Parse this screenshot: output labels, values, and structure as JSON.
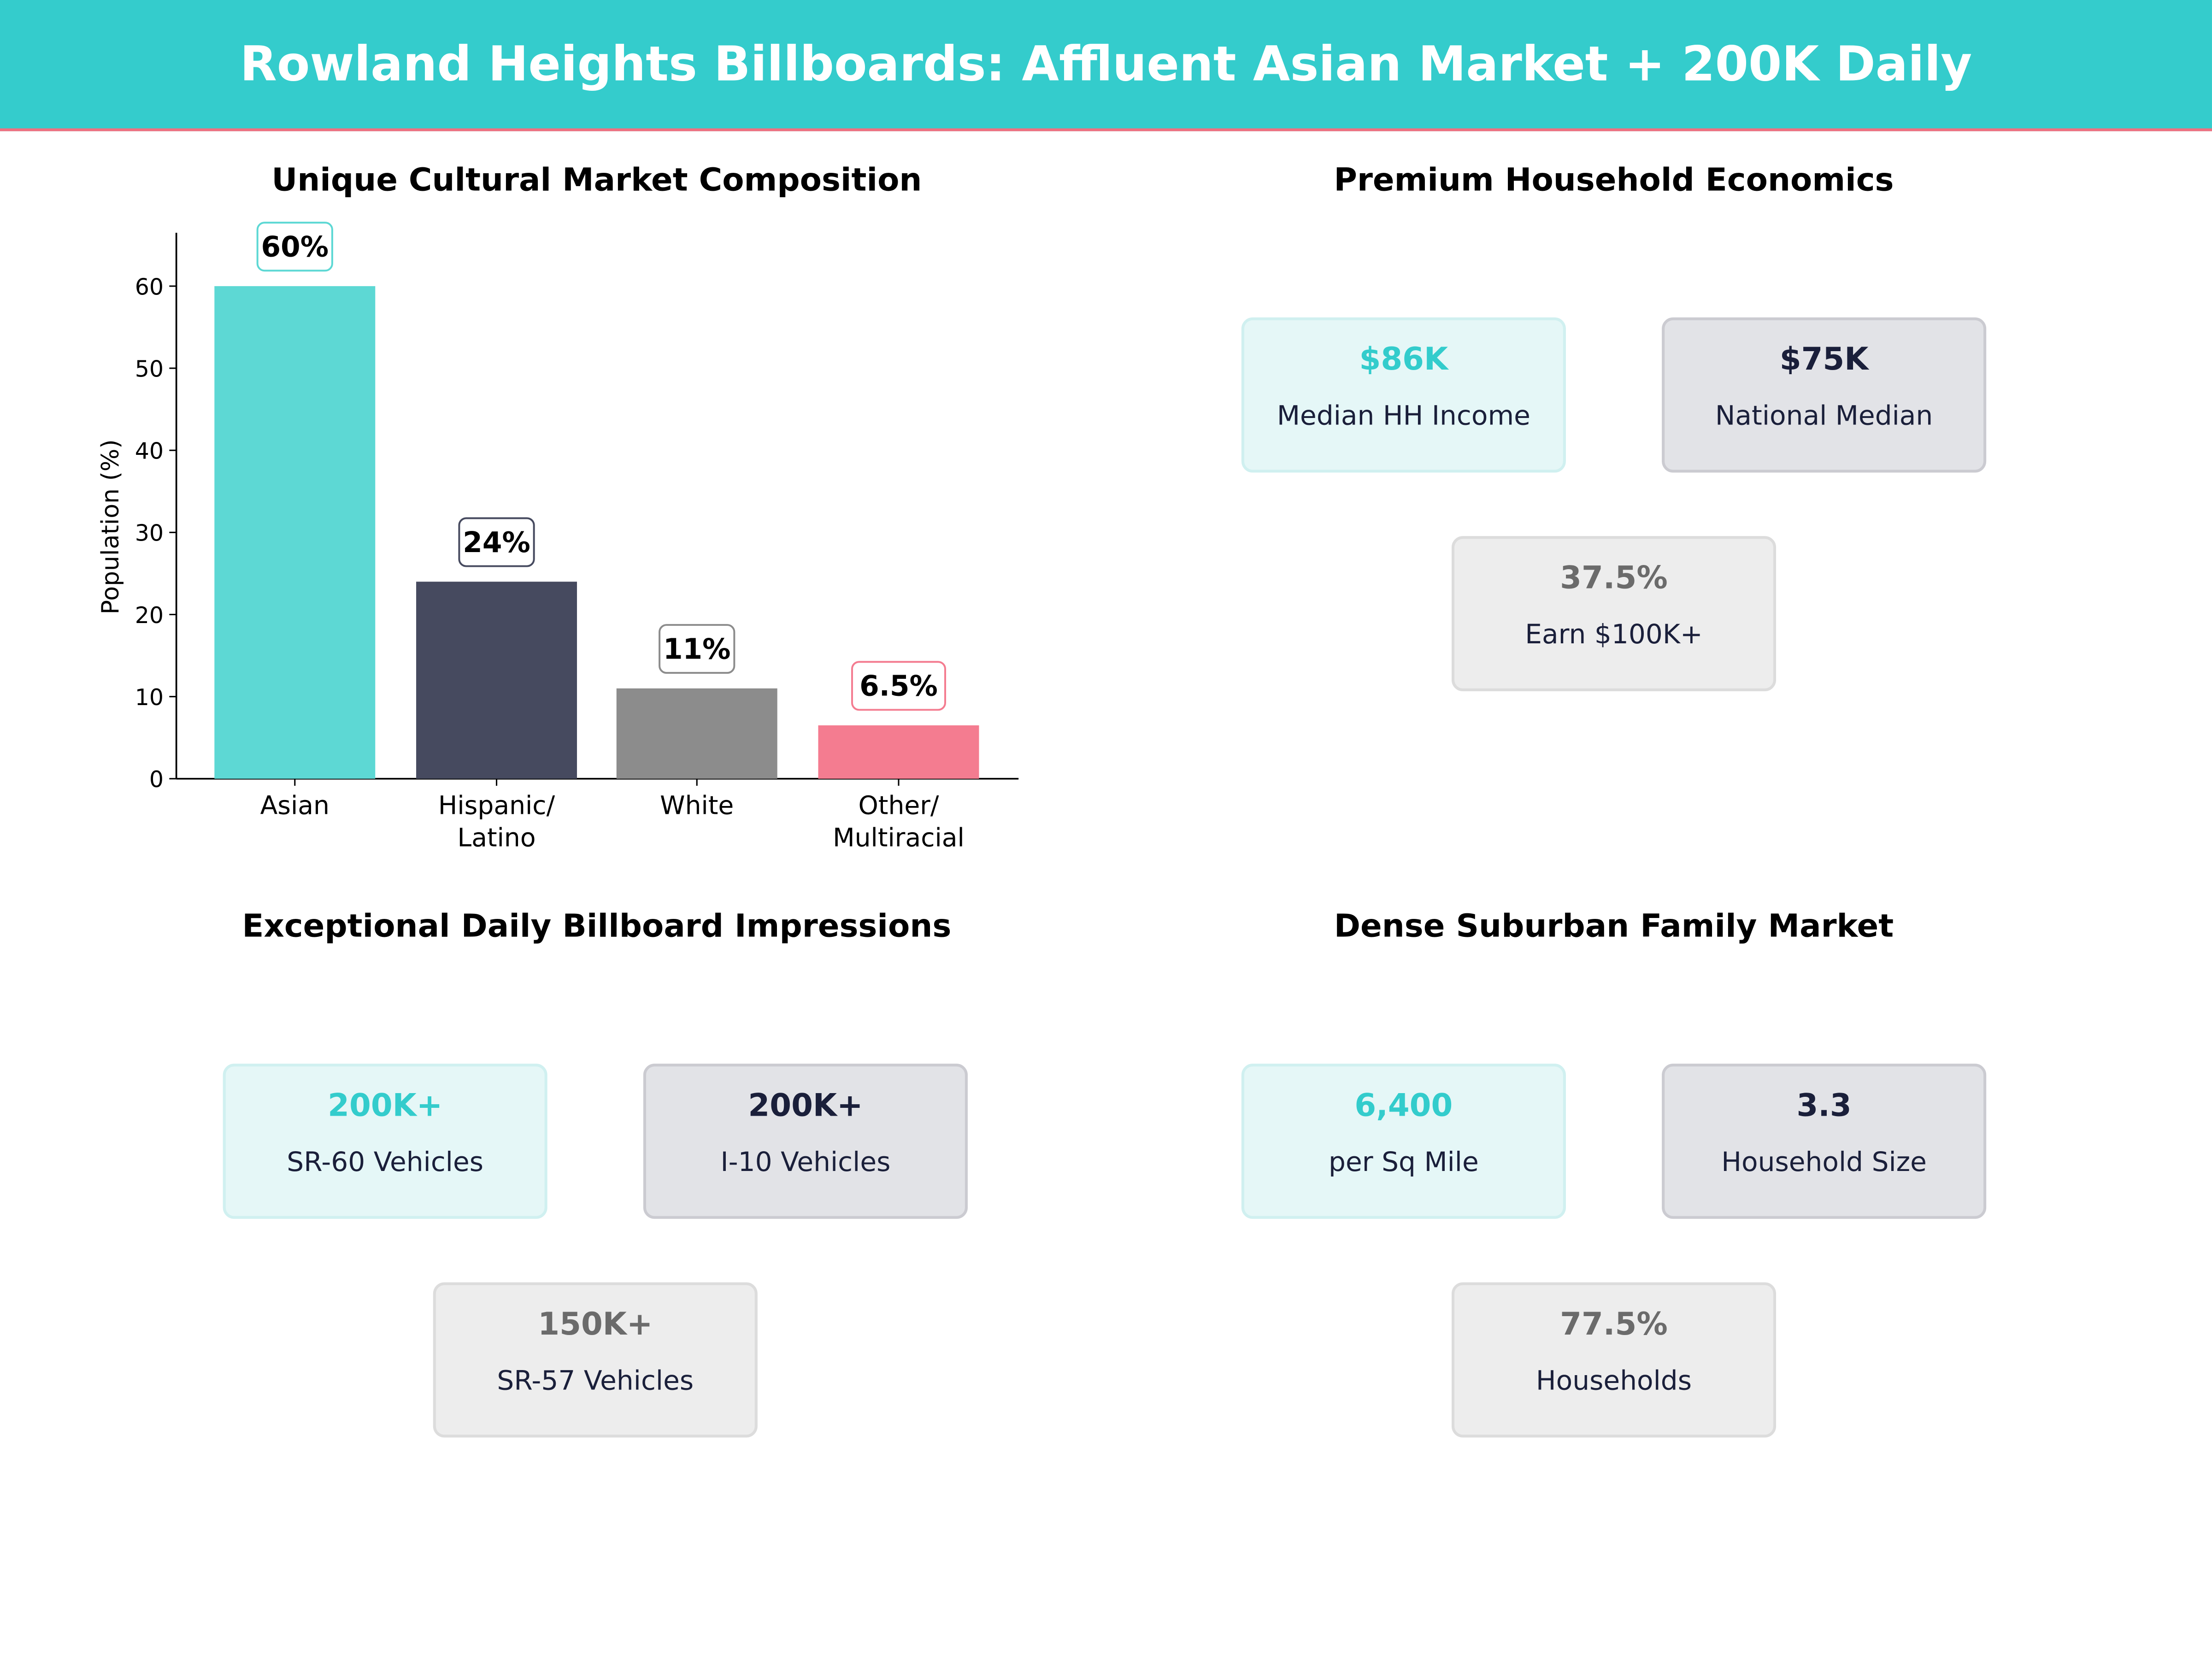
{
  "header": {
    "title": "Rowland Heights Billboards: Affluent Asian Market + 200K Daily",
    "background": "#34CCCC",
    "accent_line": "#F07080"
  },
  "chart_data": {
    "type": "bar",
    "title": "Unique Cultural Market Composition",
    "categories": [
      "Asian",
      "Hispanic/\nLatino",
      "White",
      "Other/\nMultiracial"
    ],
    "values": [
      60,
      24,
      11,
      6.5
    ],
    "data_labels": [
      "60%",
      "24%",
      "11%",
      "6.5%"
    ],
    "colors": [
      "#5DD8D4",
      "#464A5F",
      "#8C8C8C",
      "#F47C90"
    ],
    "xlabel": "",
    "ylabel": "Population (%)",
    "ylim": [
      0,
      66.5
    ],
    "yticks": [
      0,
      10,
      20,
      30,
      40,
      50,
      60
    ],
    "grid": false
  },
  "panels": [
    {
      "title": "Premium Household Economics",
      "cards": [
        {
          "value": "$86K",
          "label": "Median HH Income",
          "style": "teal"
        },
        {
          "value": "$75K",
          "label": "National Median",
          "style": "dark"
        },
        {
          "value": "37.5%",
          "label": "Earn $100K+",
          "style": "gray"
        }
      ]
    },
    {
      "title": "Exceptional Daily Billboard Impressions",
      "cards": [
        {
          "value": "200K+",
          "label": "SR-60  Vehicles",
          "style": "teal"
        },
        {
          "value": "200K+",
          "label": "I-10  Vehicles",
          "style": "dark"
        },
        {
          "value": "150K+",
          "label": "SR-57  Vehicles",
          "style": "gray"
        }
      ]
    },
    {
      "title": "Dense Suburban Family Market",
      "cards": [
        {
          "value": "6,400",
          "label": "per Sq Mile",
          "style": "teal"
        },
        {
          "value": "3.3",
          "label": "Household Size",
          "style": "dark"
        },
        {
          "value": "77.5%",
          "label": "Households",
          "style": "gray"
        }
      ]
    }
  ]
}
